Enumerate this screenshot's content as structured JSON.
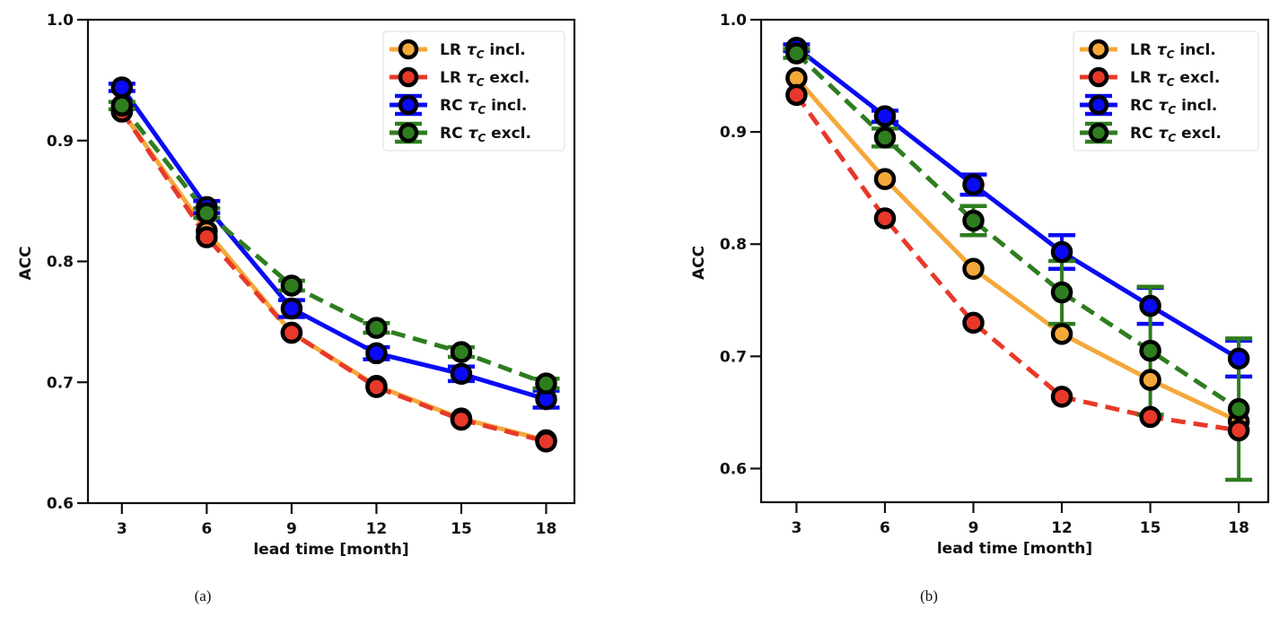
{
  "chart_data": [
    {
      "type": "line",
      "panel": "a",
      "caption": "(a)",
      "title": "",
      "xlabel": "lead time [month]",
      "ylabel": "ACC",
      "x": [
        3,
        6,
        9,
        12,
        15,
        18
      ],
      "xticks": [
        "3",
        "6",
        "9",
        "12",
        "15",
        "18"
      ],
      "yticks": [
        "0.6",
        "0.7",
        "0.8",
        "0.9",
        "1.0"
      ],
      "ytick_values": [
        0.6,
        0.7,
        0.8,
        0.9,
        1.0
      ],
      "ylim": [
        0.6,
        1.0
      ],
      "xlim": [
        1.8,
        19.0
      ],
      "grid": false,
      "legend_position": "top-right",
      "series": [
        {
          "name": "LR τC incl.",
          "label_main": "LR ",
          "label_sub": "C",
          "label_rest": " incl.",
          "color": "#f5a83a",
          "linestyle": "solid",
          "values": [
            0.924,
            0.825,
            0.741,
            0.697,
            0.67,
            0.652
          ],
          "errors": null
        },
        {
          "name": "LR τC excl.",
          "label_main": "LR ",
          "label_sub": "C",
          "label_rest": " excl.",
          "color": "#e8382a",
          "linestyle": "dashed",
          "values": [
            0.924,
            0.82,
            0.741,
            0.696,
            0.669,
            0.651
          ],
          "errors": null
        },
        {
          "name": "RC τC incl.",
          "label_main": "RC ",
          "label_sub": "C",
          "label_rest": " incl.",
          "color": "#0a0af5",
          "linestyle": "solid",
          "values": [
            0.944,
            0.845,
            0.761,
            0.724,
            0.707,
            0.686
          ],
          "errors": [
            0.003,
            0.005,
            0.007,
            0.005,
            0.006,
            0.007
          ]
        },
        {
          "name": "RC τC excl.",
          "label_main": "RC ",
          "label_sub": "C",
          "label_rest": " excl.",
          "color": "#2e7d1f",
          "linestyle": "dashed",
          "values": [
            0.929,
            0.84,
            0.78,
            0.745,
            0.725,
            0.699
          ],
          "errors": [
            0.003,
            0.004,
            0.004,
            0.004,
            0.004,
            0.004
          ]
        }
      ]
    },
    {
      "type": "line",
      "panel": "b",
      "caption": "(b)",
      "title": "",
      "xlabel": "lead time [month]",
      "ylabel": "ACC",
      "x": [
        3,
        6,
        9,
        12,
        15,
        18
      ],
      "xticks": [
        "3",
        "6",
        "9",
        "12",
        "15",
        "18"
      ],
      "yticks": [
        "0.6",
        "0.7",
        "0.8",
        "0.9",
        "1.0"
      ],
      "ytick_values": [
        0.6,
        0.7,
        0.8,
        0.9,
        1.0
      ],
      "ylim": [
        0.57,
        1.0
      ],
      "xlim": [
        1.8,
        19.0
      ],
      "grid": false,
      "legend_position": "top-right",
      "series": [
        {
          "name": "LR τC incl.",
          "label_main": "LR ",
          "label_sub": "C",
          "label_rest": " incl.",
          "color": "#f5a83a",
          "linestyle": "solid",
          "values": [
            0.948,
            0.858,
            0.778,
            0.72,
            0.679,
            0.642
          ],
          "errors": null
        },
        {
          "name": "LR τC excl.",
          "label_main": "LR ",
          "label_sub": "C",
          "label_rest": " excl.",
          "color": "#e8382a",
          "linestyle": "dashed",
          "values": [
            0.933,
            0.823,
            0.73,
            0.664,
            0.646,
            0.634
          ],
          "errors": null
        },
        {
          "name": "RC τC incl.",
          "label_main": "RC ",
          "label_sub": "C",
          "label_rest": " incl.",
          "color": "#0a0af5",
          "linestyle": "solid",
          "values": [
            0.975,
            0.914,
            0.853,
            0.793,
            0.745,
            0.698
          ],
          "errors": [
            0.003,
            0.005,
            0.009,
            0.015,
            0.016,
            0.016
          ]
        },
        {
          "name": "RC τC excl.",
          "label_main": "RC ",
          "label_sub": "C",
          "label_rest": " excl.",
          "color": "#2e7d1f",
          "linestyle": "dashed",
          "values": [
            0.97,
            0.895,
            0.821,
            0.757,
            0.705,
            0.653
          ],
          "errors": [
            0.004,
            0.008,
            0.013,
            0.028,
            0.057,
            0.063
          ]
        }
      ]
    }
  ]
}
